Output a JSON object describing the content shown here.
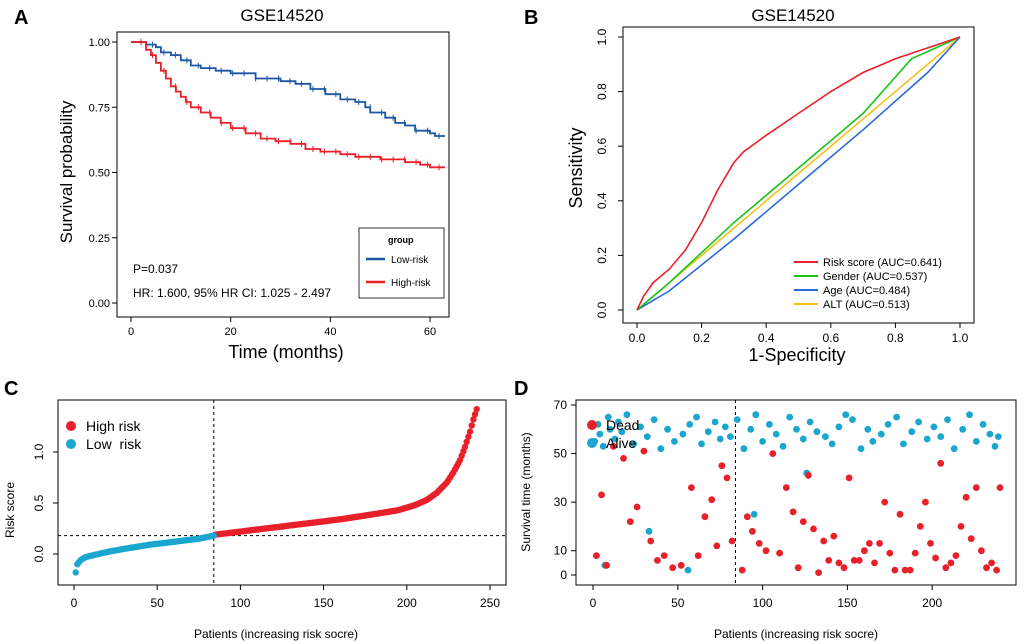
{
  "colors": {
    "red": "#e8202a",
    "blue": "#1b57a4",
    "green": "#17c417",
    "sky": "#1ba6cf",
    "gold": "#f2c21a",
    "black": "#111111"
  },
  "panels": {
    "a": "A",
    "b": "B",
    "c": "C",
    "d": "D"
  },
  "chart_data": [
    {
      "panel": "A",
      "type": "line",
      "title": "GSE14520",
      "xlabel": "Time (months)",
      "ylabel": "Survival probability",
      "xlim": [
        0,
        63
      ],
      "ylim": [
        0,
        1
      ],
      "xticks": [
        0,
        20,
        40,
        60
      ],
      "yticks": [
        "0.00",
        "0.25",
        "0.50",
        "0.75",
        "1.00"
      ],
      "legend": {
        "title": "group",
        "position": "bottom-right"
      },
      "annotations": {
        "p": "P=0.037",
        "hr": "HR: 1.600, 95% HR CI: 1.025 - 2.497"
      },
      "series": [
        {
          "name": "Low-risk",
          "color": "#1b57a4",
          "x": [
            0,
            3,
            3,
            5,
            5,
            6,
            6,
            8,
            8,
            10,
            10,
            12,
            12,
            14,
            14,
            17,
            17,
            20,
            20,
            25,
            25,
            30,
            30,
            33,
            33,
            36,
            36,
            39,
            39,
            42,
            42,
            45,
            45,
            47,
            47,
            48,
            48,
            51,
            51,
            53,
            53,
            55,
            55,
            57,
            57,
            60,
            60,
            61,
            61,
            63
          ],
          "y": [
            1,
            1,
            0.99,
            0.99,
            0.98,
            0.98,
            0.96,
            0.96,
            0.95,
            0.95,
            0.93,
            0.93,
            0.91,
            0.91,
            0.9,
            0.9,
            0.89,
            0.89,
            0.88,
            0.88,
            0.86,
            0.86,
            0.85,
            0.85,
            0.84,
            0.84,
            0.82,
            0.82,
            0.8,
            0.8,
            0.78,
            0.78,
            0.77,
            0.77,
            0.75,
            0.75,
            0.73,
            0.73,
            0.71,
            0.71,
            0.69,
            0.69,
            0.68,
            0.68,
            0.66,
            0.66,
            0.65,
            0.65,
            0.64,
            0.64
          ]
        },
        {
          "name": "High-risk",
          "color": "#e8202a",
          "x": [
            0,
            3,
            3,
            4,
            4,
            5,
            5,
            6,
            6,
            7,
            7,
            8,
            8,
            9,
            9,
            10,
            10,
            11,
            11,
            12,
            12,
            14,
            14,
            16,
            16,
            18,
            18,
            20,
            20,
            23,
            23,
            26,
            26,
            29,
            29,
            32,
            32,
            35,
            35,
            38,
            38,
            42,
            42,
            45,
            45,
            50,
            50,
            55,
            55,
            58,
            58,
            60,
            60,
            63
          ],
          "y": [
            1,
            1,
            0.97,
            0.97,
            0.95,
            0.95,
            0.92,
            0.92,
            0.89,
            0.89,
            0.86,
            0.86,
            0.83,
            0.83,
            0.81,
            0.81,
            0.79,
            0.79,
            0.77,
            0.77,
            0.75,
            0.75,
            0.73,
            0.73,
            0.71,
            0.71,
            0.69,
            0.69,
            0.67,
            0.67,
            0.65,
            0.65,
            0.63,
            0.63,
            0.62,
            0.62,
            0.61,
            0.61,
            0.59,
            0.59,
            0.58,
            0.58,
            0.57,
            0.57,
            0.56,
            0.56,
            0.55,
            0.55,
            0.54,
            0.54,
            0.53,
            0.53,
            0.52,
            0.52
          ]
        }
      ]
    },
    {
      "panel": "B",
      "type": "line",
      "title": "GSE14520",
      "xlabel": "1-Specificity",
      "ylabel": "Sensitivity",
      "xlim": [
        0,
        1
      ],
      "ylim": [
        0,
        1
      ],
      "ticks": [
        "0.0",
        "0.2",
        "0.4",
        "0.6",
        "0.8",
        "1.0"
      ],
      "legend": {
        "position": "bottom-right"
      },
      "series": [
        {
          "name": "Risk score (AUC=0.641)",
          "color": "#e8202a",
          "x": [
            0,
            0.02,
            0.05,
            0.1,
            0.15,
            0.2,
            0.25,
            0.3,
            0.33,
            0.4,
            0.5,
            0.6,
            0.7,
            0.8,
            0.9,
            1
          ],
          "y": [
            0,
            0.05,
            0.1,
            0.15,
            0.22,
            0.32,
            0.44,
            0.54,
            0.58,
            0.64,
            0.72,
            0.8,
            0.87,
            0.92,
            0.96,
            1
          ]
        },
        {
          "name": "Gender (AUC=0.537)",
          "color": "#17c417",
          "x": [
            0,
            0.1,
            0.3,
            0.5,
            0.7,
            0.85,
            1
          ],
          "y": [
            0,
            0.1,
            0.32,
            0.52,
            0.72,
            0.92,
            1
          ]
        },
        {
          "name": "Age (AUC=0.484)",
          "color": "#2a6ad8",
          "x": [
            0,
            0.1,
            0.3,
            0.5,
            0.7,
            0.9,
            1
          ],
          "y": [
            0,
            0.07,
            0.26,
            0.46,
            0.66,
            0.87,
            1
          ]
        },
        {
          "name": "ALT (AUC=0.513)",
          "color": "#f2c21a",
          "x": [
            0,
            0.1,
            0.3,
            0.5,
            0.7,
            0.9,
            1
          ],
          "y": [
            0,
            0.1,
            0.3,
            0.5,
            0.7,
            0.9,
            1
          ]
        }
      ]
    },
    {
      "panel": "C",
      "type": "scatter",
      "xlabel": "Patients (increasing risk socre)",
      "ylabel": "Risk score",
      "xlim": [
        -5,
        250
      ],
      "ylim": [
        -0.22,
        1.45
      ],
      "xticks": [
        0,
        50,
        100,
        150,
        200,
        250
      ],
      "yticks": [
        "0.0",
        "0.5",
        "1.0"
      ],
      "cutoff_index": 84,
      "cutoff_score": 0.18,
      "legend": {
        "position": "top-left"
      },
      "series": [
        {
          "name": "High risk",
          "color": "#e8202a",
          "count": 158,
          "curve_x": [
            85,
            100,
            120,
            140,
            160,
            180,
            195,
            205,
            212,
            218,
            224,
            228,
            232,
            235,
            238,
            240,
            242
          ],
          "curve_y": [
            0.19,
            0.22,
            0.26,
            0.3,
            0.34,
            0.39,
            0.43,
            0.48,
            0.53,
            0.6,
            0.7,
            0.8,
            0.92,
            1.05,
            1.2,
            1.32,
            1.42
          ]
        },
        {
          "name": "Low  risk",
          "color": "#1ba6cf",
          "count": 84,
          "curve_x": [
            1,
            2,
            4,
            7,
            12,
            20,
            30,
            45,
            60,
            75,
            84
          ],
          "curve_y": [
            -0.18,
            -0.1,
            -0.06,
            -0.03,
            -0.01,
            0.02,
            0.05,
            0.09,
            0.12,
            0.15,
            0.18
          ]
        }
      ]
    },
    {
      "panel": "D",
      "type": "scatter",
      "xlabel": "Patients (increasing risk socre)",
      "ylabel": "Survival time (months)",
      "xlim": [
        -5,
        250
      ],
      "ylim": [
        -1,
        70
      ],
      "xticks": [
        0,
        50,
        100,
        150,
        200,
        250
      ],
      "yticks": [
        0,
        10,
        30,
        50,
        70
      ],
      "cutoff_index": 84,
      "legend": {
        "position": "top-left"
      },
      "series": [
        {
          "name": "Dead",
          "color": "#e8202a",
          "x": [
            2,
            5,
            8,
            12,
            18,
            22,
            26,
            30,
            34,
            38,
            42,
            47,
            52,
            58,
            62,
            66,
            70,
            73,
            76,
            79,
            82,
            88,
            91,
            94,
            98,
            102,
            106,
            110,
            114,
            118,
            121,
            124,
            127,
            130,
            133,
            136,
            139,
            142,
            145,
            148,
            151,
            154,
            157,
            160,
            163,
            166,
            169,
            172,
            175,
            178,
            181,
            184,
            187,
            190,
            193,
            196,
            199,
            202,
            205,
            208,
            211,
            214,
            217,
            220,
            223,
            226,
            229,
            232,
            235,
            238,
            240
          ],
          "y": [
            8,
            33,
            4,
            53,
            48,
            22,
            28,
            51,
            14,
            6,
            8,
            3,
            4,
            36,
            8,
            24,
            31,
            12,
            45,
            40,
            14,
            2,
            24,
            18,
            13,
            10,
            50,
            9,
            36,
            26,
            3,
            22,
            41,
            19,
            1,
            14,
            6,
            16,
            5,
            3,
            40,
            6,
            6,
            10,
            13,
            5,
            13,
            30,
            9,
            2,
            25,
            2,
            2,
            9,
            20,
            30,
            13,
            7,
            46,
            3,
            5,
            8,
            20,
            32,
            15,
            36,
            10,
            3,
            5,
            2,
            36
          ]
        },
        {
          "name": "Alive",
          "color": "#1ba6cf",
          "x": [
            1,
            3,
            4,
            6,
            9,
            10,
            13,
            15,
            17,
            20,
            24,
            28,
            32,
            36,
            40,
            44,
            48,
            53,
            57,
            61,
            64,
            68,
            72,
            75,
            78,
            81,
            85,
            89,
            93,
            96,
            100,
            104,
            108,
            112,
            116,
            120,
            124,
            128,
            132,
            137,
            141,
            145,
            149,
            153,
            158,
            162,
            165,
            170,
            174,
            179,
            183,
            188,
            192,
            197,
            201,
            205,
            209,
            213,
            218,
            222,
            226,
            230,
            234,
            237,
            239,
            7,
            33,
            56,
            95,
            126
          ],
          "y": [
            55,
            62,
            58,
            53,
            65,
            60,
            56,
            63,
            59,
            66,
            54,
            61,
            57,
            64,
            52,
            60,
            55,
            58,
            62,
            65,
            54,
            59,
            63,
            56,
            61,
            57,
            64,
            52,
            60,
            66,
            55,
            62,
            58,
            53,
            65,
            60,
            56,
            63,
            59,
            57,
            54,
            61,
            66,
            64,
            52,
            60,
            55,
            58,
            62,
            65,
            54,
            59,
            63,
            56,
            61,
            57,
            64,
            52,
            60,
            66,
            55,
            62,
            58,
            53,
            57,
            4,
            18,
            2,
            25,
            42
          ]
        }
      ]
    }
  ]
}
